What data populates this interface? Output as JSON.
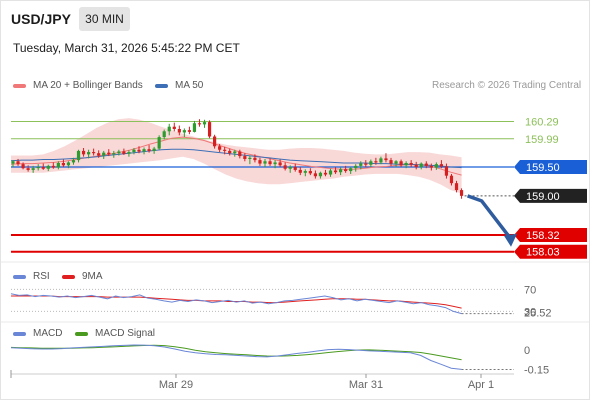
{
  "header": {
    "symbol": "USD/JPY",
    "timeframe": "30 MIN",
    "datetime": "Tuesday, March 31, 2026 5:45:22 PM CET"
  },
  "legend": {
    "bollinger_label": "MA 20 + Bollinger Bands",
    "ma50_label": "MA 50",
    "credit": "Research © 2026 Trading Central"
  },
  "colors": {
    "up": "#2e9b2e",
    "down": "#d42020",
    "ma20": "#f07878",
    "ma50": "#3d6fb6",
    "bollinger_fill": "#f8d4d4",
    "support": "#e00000",
    "pivot": "#1a5fd6",
    "resistance": "#8cc05a",
    "arrow": "#2f5c9e",
    "rsi": "#6a86d6",
    "rsi_ma": "#e02020",
    "macd": "#6a86d6",
    "macd_signal": "#4a9a1f"
  },
  "chart_data": [
    {
      "type": "candlestick",
      "title": "USD/JPY",
      "x_ticks": [
        "Mar 29",
        "Mar 31",
        "Apr 1"
      ],
      "ylim": [
        157.8,
        160.75
      ],
      "levels": {
        "resistance": [
          "160.29",
          "159.99"
        ],
        "pivot": "159.50",
        "last": "159.00",
        "support": [
          "158.32",
          "158.03"
        ]
      },
      "candles": [
        [
          159.56,
          159.62,
          159.5,
          159.6
        ],
        [
          159.6,
          159.64,
          159.52,
          159.55
        ],
        [
          159.55,
          159.58,
          159.46,
          159.48
        ],
        [
          159.48,
          159.53,
          159.42,
          159.45
        ],
        [
          159.45,
          159.52,
          159.4,
          159.48
        ],
        [
          159.48,
          159.55,
          159.44,
          159.5
        ],
        [
          159.5,
          159.56,
          159.45,
          159.47
        ],
        [
          159.47,
          159.54,
          159.43,
          159.52
        ],
        [
          159.52,
          159.58,
          159.47,
          159.49
        ],
        [
          159.49,
          159.6,
          159.46,
          159.57
        ],
        [
          159.57,
          159.63,
          159.5,
          159.53
        ],
        [
          159.53,
          159.6,
          159.48,
          159.58
        ],
        [
          159.58,
          159.66,
          159.54,
          159.62
        ],
        [
          159.62,
          159.8,
          159.58,
          159.78
        ],
        [
          159.78,
          159.83,
          159.68,
          159.72
        ],
        [
          159.72,
          159.8,
          159.65,
          159.76
        ],
        [
          159.76,
          159.82,
          159.7,
          159.74
        ],
        [
          159.74,
          159.79,
          159.66,
          159.7
        ],
        [
          159.7,
          159.78,
          159.64,
          159.75
        ],
        [
          159.75,
          159.81,
          159.69,
          159.72
        ],
        [
          159.72,
          159.78,
          159.66,
          159.74
        ],
        [
          159.74,
          159.8,
          159.7,
          159.77
        ],
        [
          159.77,
          159.82,
          159.71,
          159.73
        ],
        [
          159.73,
          159.79,
          159.68,
          159.76
        ],
        [
          159.76,
          159.83,
          159.72,
          159.8
        ],
        [
          159.8,
          159.86,
          159.74,
          159.77
        ],
        [
          159.77,
          159.84,
          159.72,
          159.81
        ],
        [
          159.81,
          159.88,
          159.75,
          159.78
        ],
        [
          159.78,
          159.85,
          159.73,
          159.82
        ],
        [
          159.82,
          160.05,
          159.8,
          160.02
        ],
        [
          160.02,
          160.15,
          159.98,
          160.12
        ],
        [
          160.12,
          160.25,
          160.05,
          160.2
        ],
        [
          160.2,
          160.27,
          160.12,
          160.16
        ],
        [
          160.16,
          160.22,
          160.05,
          160.1
        ],
        [
          160.1,
          160.17,
          160.02,
          160.14
        ],
        [
          160.14,
          160.2,
          160.07,
          160.11
        ],
        [
          160.11,
          160.3,
          160.1,
          160.26
        ],
        [
          160.26,
          160.33,
          160.2,
          160.24
        ],
        [
          160.24,
          160.32,
          160.18,
          160.28
        ],
        [
          160.28,
          160.31,
          160.0,
          160.03
        ],
        [
          160.03,
          160.06,
          159.82,
          159.86
        ],
        [
          159.86,
          159.9,
          159.76,
          159.8
        ],
        [
          159.8,
          159.85,
          159.72,
          159.78
        ],
        [
          159.78,
          159.82,
          159.7,
          159.74
        ],
        [
          159.74,
          159.8,
          159.68,
          159.77
        ],
        [
          159.77,
          159.8,
          159.65,
          159.69
        ],
        [
          159.69,
          159.74,
          159.6,
          159.64
        ],
        [
          159.64,
          159.7,
          159.55,
          159.66
        ],
        [
          159.66,
          159.72,
          159.58,
          159.62
        ],
        [
          159.62,
          159.66,
          159.52,
          159.56
        ],
        [
          159.56,
          159.64,
          159.5,
          159.6
        ],
        [
          159.6,
          159.65,
          159.52,
          159.55
        ],
        [
          159.55,
          159.62,
          159.48,
          159.58
        ],
        [
          159.58,
          159.63,
          159.5,
          159.53
        ],
        [
          159.53,
          159.58,
          159.44,
          159.47
        ],
        [
          159.47,
          159.53,
          159.4,
          159.5
        ],
        [
          159.5,
          159.56,
          159.42,
          159.45
        ],
        [
          159.45,
          159.5,
          159.36,
          159.4
        ],
        [
          159.4,
          159.46,
          159.34,
          159.43
        ],
        [
          159.43,
          159.48,
          159.36,
          159.39
        ],
        [
          159.39,
          159.44,
          159.3,
          159.34
        ],
        [
          159.34,
          159.42,
          159.3,
          159.4
        ],
        [
          159.4,
          159.45,
          159.34,
          159.37
        ],
        [
          159.37,
          159.47,
          159.33,
          159.44
        ],
        [
          159.44,
          159.5,
          159.38,
          159.41
        ],
        [
          159.41,
          159.49,
          159.36,
          159.46
        ],
        [
          159.46,
          159.52,
          159.4,
          159.43
        ],
        [
          159.43,
          159.5,
          159.38,
          159.48
        ],
        [
          159.48,
          159.55,
          159.42,
          159.52
        ],
        [
          159.52,
          159.6,
          159.46,
          159.56
        ],
        [
          159.56,
          159.62,
          159.5,
          159.54
        ],
        [
          159.54,
          159.63,
          159.5,
          159.6
        ],
        [
          159.6,
          159.66,
          159.54,
          159.58
        ],
        [
          159.58,
          159.68,
          159.55,
          159.65
        ],
        [
          159.65,
          159.74,
          159.58,
          159.62
        ],
        [
          159.62,
          159.66,
          159.52,
          159.56
        ],
        [
          159.56,
          159.62,
          159.5,
          159.6
        ],
        [
          159.6,
          159.63,
          159.5,
          159.53
        ],
        [
          159.53,
          159.6,
          159.48,
          159.57
        ],
        [
          159.57,
          159.62,
          159.5,
          159.54
        ],
        [
          159.54,
          159.59,
          159.46,
          159.5
        ],
        [
          159.5,
          159.58,
          159.46,
          159.56
        ],
        [
          159.56,
          159.6,
          159.48,
          159.52
        ],
        [
          159.52,
          159.56,
          159.44,
          159.49
        ],
        [
          159.49,
          159.58,
          159.45,
          159.55
        ],
        [
          159.55,
          159.62,
          159.48,
          159.51
        ],
        [
          159.51,
          159.56,
          159.3,
          159.35
        ],
        [
          159.35,
          159.38,
          159.18,
          159.22
        ],
        [
          159.22,
          159.26,
          159.06,
          159.1
        ],
        [
          159.1,
          159.13,
          158.95,
          159.0
        ]
      ],
      "ma20": [
        159.55,
        159.56,
        159.56,
        159.57,
        159.58,
        159.6,
        159.63,
        159.66,
        159.69,
        159.72,
        159.75,
        159.79,
        159.84,
        159.9,
        159.95,
        160.0,
        160.02,
        160.0,
        159.96,
        159.9,
        159.84,
        159.78,
        159.73,
        159.69,
        159.65,
        159.61,
        159.57,
        159.54,
        159.51,
        159.49,
        159.47,
        159.46,
        159.46,
        159.48,
        159.5,
        159.51,
        159.53,
        159.54,
        159.54,
        159.52,
        159.47,
        159.41,
        159.36
      ],
      "ma50": [
        159.61,
        159.62,
        159.62,
        159.63,
        159.63,
        159.64,
        159.65,
        159.66,
        159.68,
        159.7,
        159.72,
        159.74,
        159.76,
        159.78,
        159.8,
        159.81,
        159.81,
        159.8,
        159.78,
        159.76,
        159.74,
        159.72,
        159.7,
        159.68,
        159.66,
        159.64,
        159.62,
        159.61,
        159.6,
        159.59,
        159.58,
        159.57,
        159.57,
        159.57,
        159.56,
        159.56,
        159.55,
        159.55,
        159.54,
        159.53,
        159.52,
        159.5,
        159.49
      ],
      "bollinger_upper": [
        159.7,
        159.7,
        159.7,
        159.72,
        159.78,
        159.86,
        159.96,
        160.07,
        160.18,
        160.27,
        160.33,
        160.35,
        160.32,
        160.27,
        160.2,
        160.14,
        160.08,
        160.03,
        159.98,
        159.93,
        159.89,
        159.86,
        159.84,
        159.82,
        159.8,
        159.8,
        159.82,
        159.83,
        159.83,
        159.82,
        159.8,
        159.78,
        159.75,
        159.73,
        159.72,
        159.72,
        159.74,
        159.76,
        159.76,
        159.75,
        159.72,
        159.7,
        159.67
      ],
      "bollinger_lower": [
        159.4,
        159.4,
        159.4,
        159.4,
        159.42,
        159.44,
        159.46,
        159.48,
        159.5,
        159.52,
        159.54,
        159.56,
        159.58,
        159.6,
        159.62,
        159.65,
        159.68,
        159.64,
        159.56,
        159.46,
        159.37,
        159.3,
        159.25,
        159.22,
        159.2,
        159.2,
        159.22,
        159.24,
        159.26,
        159.28,
        159.3,
        159.33,
        159.35,
        159.37,
        159.38,
        159.38,
        159.38,
        159.36,
        159.33,
        159.28,
        159.2,
        159.1,
        159.04
      ]
    },
    {
      "type": "line",
      "title": "RSI",
      "ylim": [
        18,
        78
      ],
      "levels": [
        "70",
        "30"
      ],
      "last_value": "25.52",
      "series": [
        {
          "name": "RSI",
          "values": [
            62,
            59,
            60,
            57,
            59,
            58,
            56,
            58,
            55,
            57,
            59,
            56,
            53,
            58,
            55,
            57,
            60,
            54,
            52,
            49,
            47,
            50,
            48,
            51,
            49,
            46,
            48,
            50,
            47,
            49,
            45,
            47,
            44,
            46,
            49,
            50,
            52,
            54,
            56,
            58,
            55,
            51,
            53,
            49,
            52,
            50,
            48,
            46,
            49,
            47,
            44,
            46,
            42,
            40,
            37,
            30,
            26
          ]
        },
        {
          "name": "9MA",
          "values": [
            58,
            58,
            58,
            58,
            58,
            58,
            57,
            57,
            57,
            57,
            57,
            57,
            56,
            56,
            56,
            56,
            56,
            55,
            54,
            53,
            52,
            51,
            50,
            50,
            49,
            49,
            49,
            48,
            48,
            48,
            47,
            47,
            46,
            46,
            47,
            48,
            49,
            50,
            51,
            52,
            53,
            53,
            53,
            52,
            52,
            51,
            50,
            49,
            49,
            48,
            47,
            46,
            45,
            44,
            42,
            39,
            36
          ]
        }
      ]
    },
    {
      "type": "line",
      "title": "MACD",
      "ylim": [
        -0.17,
        0.08
      ],
      "last_value": "-0.15",
      "tick_label": "0",
      "series": [
        {
          "name": "MACD",
          "values": [
            0.02,
            0.015,
            0.012,
            0.01,
            0.01,
            0.013,
            0.018,
            0.022,
            0.026,
            0.03,
            0.035,
            0.038,
            0.041,
            0.04,
            0.035,
            0.025,
            0.01,
            -0.008,
            -0.02,
            -0.028,
            -0.033,
            -0.036,
            -0.04,
            -0.045,
            -0.05,
            -0.052,
            -0.045,
            -0.035,
            -0.025,
            -0.015,
            -0.005,
            0.005,
            0.008,
            0.005,
            0.0,
            -0.005,
            -0.008,
            -0.012,
            -0.015,
            -0.02,
            -0.04,
            -0.08,
            -0.11,
            -0.14,
            -0.15
          ]
        },
        {
          "name": "MACD Signal",
          "values": [
            0.022,
            0.02,
            0.018,
            0.016,
            0.015,
            0.015,
            0.016,
            0.018,
            0.02,
            0.023,
            0.026,
            0.03,
            0.034,
            0.037,
            0.039,
            0.036,
            0.028,
            0.015,
            0.0,
            -0.012,
            -0.02,
            -0.026,
            -0.031,
            -0.036,
            -0.041,
            -0.045,
            -0.046,
            -0.044,
            -0.04,
            -0.034,
            -0.026,
            -0.018,
            -0.01,
            -0.003,
            0.002,
            0.003,
            0.0,
            -0.004,
            -0.008,
            -0.012,
            -0.018,
            -0.03,
            -0.045,
            -0.06,
            -0.075
          ]
        }
      ]
    }
  ]
}
